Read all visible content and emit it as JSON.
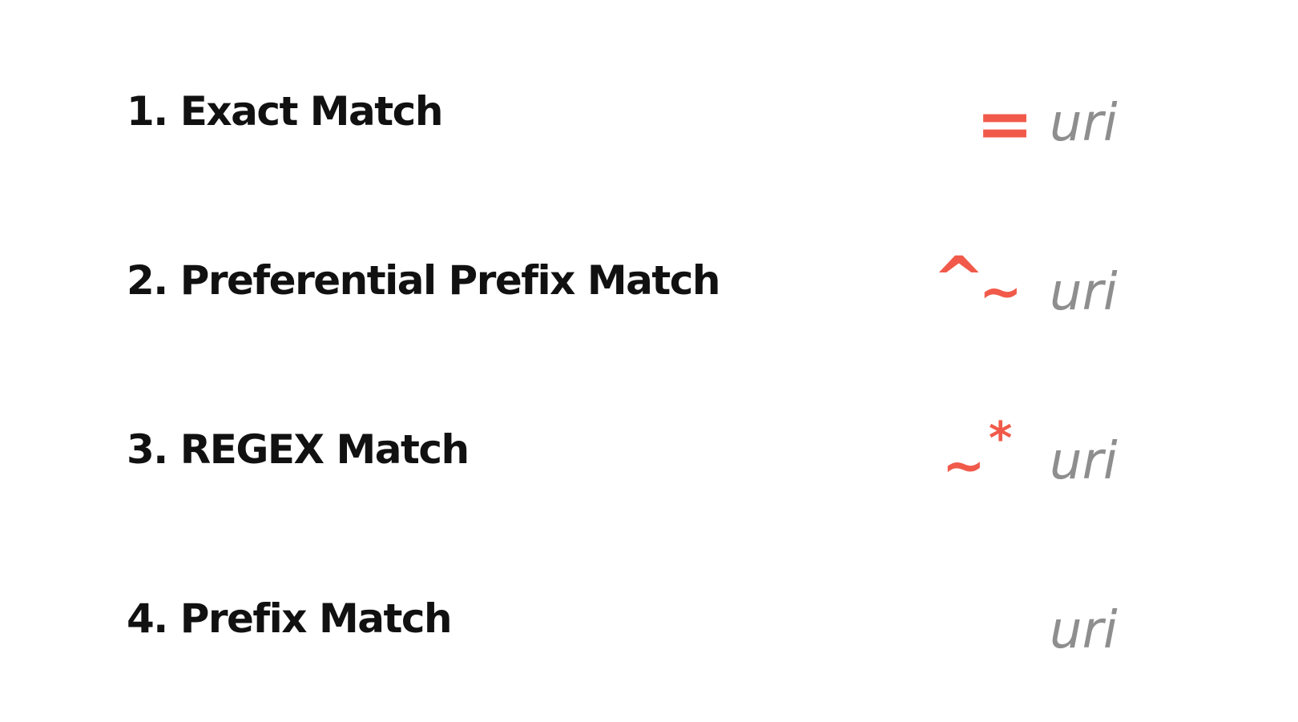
{
  "rows": [
    {
      "label": "1. Exact Match",
      "operator": "=",
      "target": "uri"
    },
    {
      "label": "2. Preferential Prefix Match",
      "operator": "^~",
      "target": "uri"
    },
    {
      "label": "3. REGEX Match",
      "operator": "~*",
      "target": "uri"
    },
    {
      "label": "4. Prefix Match",
      "operator": "",
      "target": "uri"
    }
  ],
  "colors": {
    "label_text": "#111111",
    "operator": "#f15a4a",
    "uri_text": "#8e8e8e",
    "background": "#ffffff"
  },
  "operator_glyphs": {
    "exact": "=",
    "caret": "^",
    "tilde": "~",
    "star": "*"
  }
}
